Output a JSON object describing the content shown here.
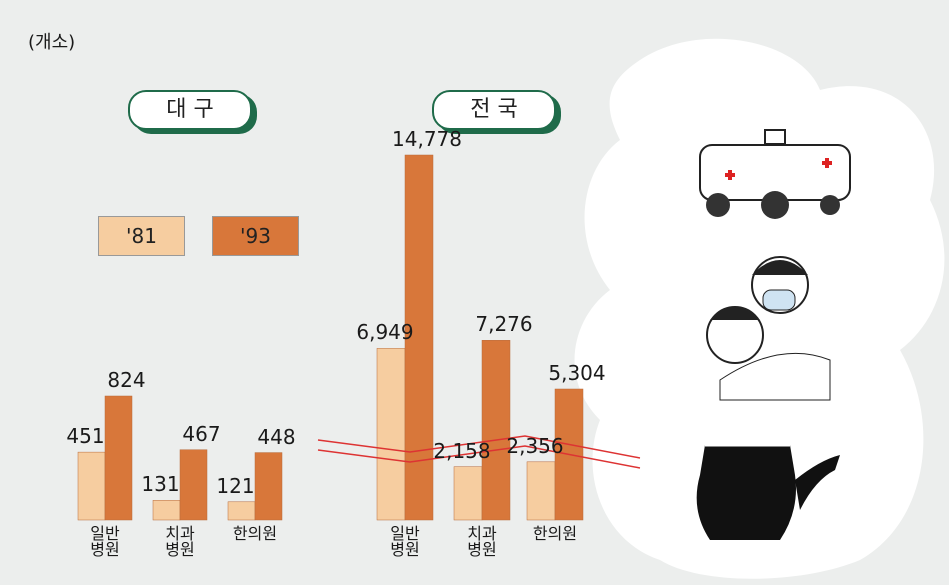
{
  "unit": "(개소)",
  "chart_data": [
    {
      "type": "bar",
      "title": "대 구",
      "categories": [
        "일반\n병원",
        "치과\n병원",
        "한의원"
      ],
      "series": [
        {
          "name": "'81",
          "color": "#f6cda0",
          "values": [
            451,
            131,
            121
          ]
        },
        {
          "name": "'93",
          "color": "#d8773a",
          "values": [
            824,
            467,
            448
          ]
        }
      ]
    },
    {
      "type": "bar",
      "title": "전 국",
      "categories": [
        "일반\n병원",
        "치과\n병원",
        "한의원"
      ],
      "series": [
        {
          "color": "#f6cda0",
          "values": [
            6949,
            2158,
            2356
          ],
          "value_labels": [
            "6,949",
            "2,158",
            "2,356"
          ]
        },
        {
          "color": "#d8773a",
          "values": [
            14778,
            7276,
            5304
          ],
          "value_labels": [
            "14,778",
            "7,276",
            "5,304"
          ]
        }
      ]
    }
  ]
}
